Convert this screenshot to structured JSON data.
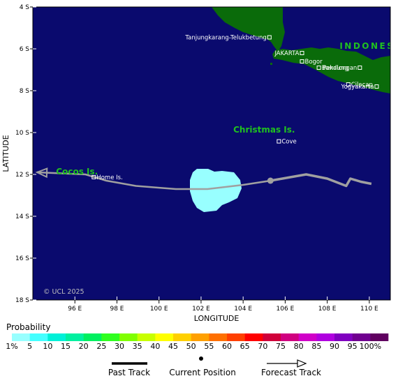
{
  "axes": {
    "xlabel": "LONGITUDE",
    "ylabel": "LATITUDE",
    "xlim": [
      94,
      111
    ],
    "ylim": [
      4,
      18
    ],
    "x_ticks": [
      {
        "lon": 96,
        "label": "96 E"
      },
      {
        "lon": 98,
        "label": "98 E"
      },
      {
        "lon": 100,
        "label": "100 E"
      },
      {
        "lon": 102,
        "label": "102 E"
      },
      {
        "lon": 104,
        "label": "104 E"
      },
      {
        "lon": 106,
        "label": "106 E"
      },
      {
        "lon": 108,
        "label": "108 E"
      },
      {
        "lon": 110,
        "label": "110 E"
      }
    ],
    "y_ticks": [
      {
        "lat": 4,
        "label": "4 S"
      },
      {
        "lat": 6,
        "label": "6 S"
      },
      {
        "lat": 8,
        "label": "8 S"
      },
      {
        "lat": 10,
        "label": "10 S"
      },
      {
        "lat": 12,
        "label": "12 S"
      },
      {
        "lat": 14,
        "label": "14 S"
      },
      {
        "lat": 16,
        "label": "16 S"
      },
      {
        "lat": 18,
        "label": "18 S"
      }
    ]
  },
  "colors": {
    "ocean": "#0a0a6e",
    "land": "#0a6b0a",
    "label_green": "#1fc11f",
    "track": "#a0a0a0",
    "probability_area": "#98ffff"
  },
  "places": [
    {
      "name": "Tanjungkarang-Telukbetung",
      "lon": 105.25,
      "lat": 5.45,
      "anchor": "end"
    },
    {
      "name": "JAKARTA",
      "lon": 106.8,
      "lat": 6.2,
      "anchor": "end"
    },
    {
      "name": "Bogor",
      "lon": 106.8,
      "lat": 6.6,
      "anchor": "start"
    },
    {
      "name": "Bandung",
      "lon": 107.6,
      "lat": 6.9,
      "anchor": "start"
    },
    {
      "name": "Pekalongan",
      "lon": 109.55,
      "lat": 6.9,
      "anchor": "end"
    },
    {
      "name": "Cilacap",
      "lon": 109.0,
      "lat": 7.7,
      "anchor": "start"
    },
    {
      "name": "Yogyakarta",
      "lon": 110.35,
      "lat": 7.8,
      "anchor": "end"
    },
    {
      "name": "Cove",
      "lon": 105.7,
      "lat": 10.42,
      "anchor": "start"
    },
    {
      "name": "Home Is.",
      "lon": 96.9,
      "lat": 12.13,
      "anchor": "start"
    }
  ],
  "regions": [
    {
      "name": "Christmas Is.",
      "lon": 105.0,
      "lat": 10.0
    },
    {
      "name": "Cocos Is.",
      "lon": 96.1,
      "lat": 12.0
    },
    {
      "name": "INDONES",
      "lon": 109.9,
      "lat": 6.0
    }
  ],
  "track": {
    "past": [
      [
        110.1,
        12.45
      ],
      [
        109.6,
        12.35
      ],
      [
        109.1,
        12.2
      ],
      [
        108.9,
        12.55
      ],
      [
        108.0,
        12.2
      ],
      [
        107.0,
        12.0
      ],
      [
        105.3,
        12.3
      ]
    ],
    "current_position": [
      105.3,
      12.3
    ],
    "forecast": [
      [
        105.3,
        12.3
      ],
      [
        104.0,
        12.5
      ],
      [
        102.3,
        12.7
      ],
      [
        100.8,
        12.7
      ],
      [
        98.9,
        12.55
      ],
      [
        97.5,
        12.3
      ],
      [
        96.5,
        12.0
      ],
      [
        94.2,
        11.9
      ]
    ]
  },
  "credit": "© UCL 2025",
  "legend": {
    "title": "Probability",
    "bins": [
      {
        "label": "1%",
        "color": "#98ffff"
      },
      {
        "label": "5",
        "color": "#44ffff"
      },
      {
        "label": "10",
        "color": "#00f0d8"
      },
      {
        "label": "15",
        "color": "#00f0a0"
      },
      {
        "label": "20",
        "color": "#00f060"
      },
      {
        "label": "25",
        "color": "#30ff20"
      },
      {
        "label": "30",
        "color": "#80ff00"
      },
      {
        "label": "35",
        "color": "#c8ff00"
      },
      {
        "label": "40",
        "color": "#ffff00"
      },
      {
        "label": "45",
        "color": "#ffd000"
      },
      {
        "label": "50",
        "color": "#ffa000"
      },
      {
        "label": "55",
        "color": "#ff7000"
      },
      {
        "label": "60",
        "color": "#ff4000"
      },
      {
        "label": "65",
        "color": "#ff0000"
      },
      {
        "label": "70",
        "color": "#d0003a"
      },
      {
        "label": "75",
        "color": "#d00080"
      },
      {
        "label": "80",
        "color": "#d000c8"
      },
      {
        "label": "85",
        "color": "#b000e0"
      },
      {
        "label": "90",
        "color": "#8000c0"
      },
      {
        "label": "95",
        "color": "#700090"
      },
      {
        "label": "100%",
        "color": "#600060"
      }
    ]
  },
  "key": {
    "past": "Past Track",
    "current": "Current Position",
    "forecast": "Forecast Track"
  }
}
